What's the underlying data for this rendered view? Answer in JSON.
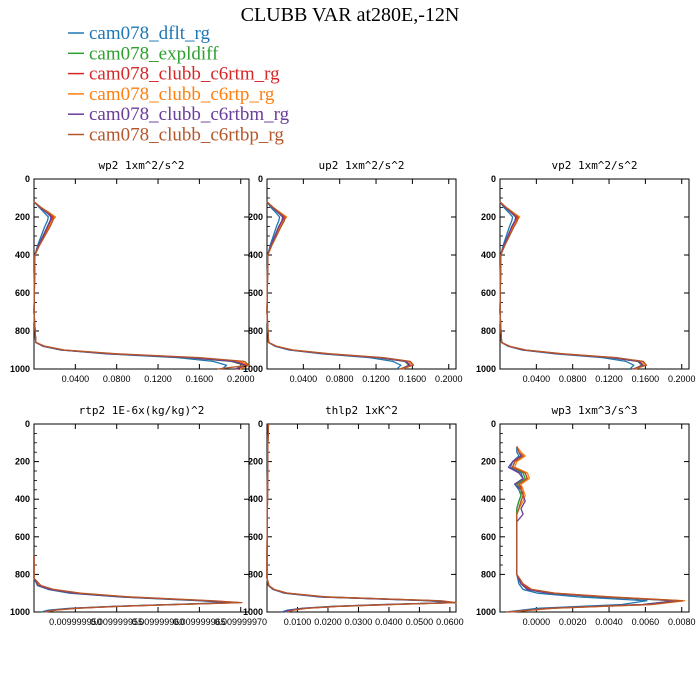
{
  "chart_data": {
    "title": "CLUBB VAR at280E,-12N",
    "legend": [
      {
        "name": "cam078_dflt_rg",
        "color": "#1f77b4"
      },
      {
        "name": "cam078_expldiff",
        "color": "#2ca02c"
      },
      {
        "name": "cam078_clubb_c6rtm_rg",
        "color": "#d62728"
      },
      {
        "name": "cam078_clubb_c6rtp_rg",
        "color": "#ff7f0e"
      },
      {
        "name": "cam078_clubb_c6rtbm_rg",
        "color": "#6a3d9a"
      },
      {
        "name": "cam078_clubb_c6rtbp_rg",
        "color": "#b5562a"
      }
    ],
    "panels": [
      {
        "type": "line",
        "title": "wp2  1xm^2/s^2",
        "xlim": [
          0,
          0.24
        ],
        "xticks": [
          "0.0400",
          "0.0800",
          "0.1200",
          "0.1600",
          "0.2000"
        ],
        "ylim": [
          0,
          1000
        ],
        "yticks": [
          "0",
          "200",
          "400",
          "600",
          "800",
          "1000"
        ],
        "y": [
          120,
          150,
          180,
          200,
          220,
          250,
          300,
          350,
          400,
          700,
          860,
          880,
          900,
          920,
          940,
          960,
          980,
          1000
        ],
        "series": [
          [
            0.0,
            0.006,
            0.012,
            0.016,
            0.015,
            0.012,
            0.008,
            0.004,
            0.001,
            0.0,
            0.002,
            0.01,
            0.03,
            0.08,
            0.16,
            0.2,
            0.215,
            0.21
          ],
          [
            0.0,
            0.007,
            0.015,
            0.02,
            0.018,
            0.015,
            0.01,
            0.005,
            0.001,
            0.0,
            0.002,
            0.01,
            0.03,
            0.085,
            0.17,
            0.22,
            0.235,
            0.225
          ],
          [
            0.0,
            0.007,
            0.016,
            0.021,
            0.019,
            0.016,
            0.011,
            0.005,
            0.001,
            0.0,
            0.002,
            0.011,
            0.032,
            0.087,
            0.175,
            0.225,
            0.238,
            0.225
          ],
          [
            0.0,
            0.008,
            0.018,
            0.024,
            0.02,
            0.017,
            0.012,
            0.006,
            0.001,
            0.0,
            0.002,
            0.011,
            0.033,
            0.09,
            0.18,
            0.23,
            0.24,
            0.23
          ],
          [
            0.0,
            0.007,
            0.015,
            0.019,
            0.018,
            0.015,
            0.01,
            0.005,
            0.001,
            0.0,
            0.002,
            0.01,
            0.031,
            0.086,
            0.172,
            0.222,
            0.236,
            0.226
          ],
          [
            0.0,
            0.008,
            0.017,
            0.022,
            0.021,
            0.018,
            0.012,
            0.006,
            0.001,
            0.0,
            0.002,
            0.012,
            0.034,
            0.092,
            0.185,
            0.235,
            0.24,
            0.205
          ]
        ]
      },
      {
        "type": "line",
        "title": "up2  1xm^2/s^2",
        "xlim": [
          0,
          0.24
        ],
        "xticks": [
          "0.0400",
          "0.0800",
          "0.1200",
          "0.1600",
          "0.2000"
        ],
        "ylim": [
          0,
          1000
        ],
        "yticks": [
          "0",
          "200",
          "400",
          "600",
          "800",
          "1000"
        ],
        "y": [
          120,
          150,
          180,
          200,
          220,
          250,
          300,
          350,
          400,
          700,
          860,
          880,
          900,
          920,
          940,
          960,
          980,
          1000
        ],
        "series": [
          [
            0.0,
            0.005,
            0.012,
            0.016,
            0.015,
            0.012,
            0.008,
            0.004,
            0.001,
            0.0,
            0.002,
            0.01,
            0.028,
            0.07,
            0.13,
            0.16,
            0.17,
            0.165
          ],
          [
            0.0,
            0.007,
            0.015,
            0.02,
            0.019,
            0.015,
            0.01,
            0.005,
            0.001,
            0.0,
            0.002,
            0.011,
            0.03,
            0.075,
            0.14,
            0.175,
            0.18,
            0.17
          ],
          [
            0.0,
            0.007,
            0.016,
            0.022,
            0.02,
            0.016,
            0.011,
            0.005,
            0.001,
            0.0,
            0.002,
            0.011,
            0.031,
            0.076,
            0.142,
            0.177,
            0.182,
            0.17
          ],
          [
            0.0,
            0.008,
            0.018,
            0.025,
            0.021,
            0.017,
            0.012,
            0.006,
            0.001,
            0.0,
            0.002,
            0.012,
            0.032,
            0.078,
            0.145,
            0.18,
            0.185,
            0.172
          ],
          [
            0.0,
            0.007,
            0.015,
            0.02,
            0.019,
            0.015,
            0.01,
            0.005,
            0.001,
            0.0,
            0.002,
            0.011,
            0.03,
            0.075,
            0.141,
            0.176,
            0.181,
            0.17
          ],
          [
            0.0,
            0.008,
            0.017,
            0.023,
            0.022,
            0.018,
            0.012,
            0.006,
            0.001,
            0.0,
            0.002,
            0.012,
            0.033,
            0.08,
            0.148,
            0.182,
            0.186,
            0.168
          ]
        ]
      },
      {
        "type": "line",
        "title": "vp2  1xm^2/s^2",
        "xlim": [
          0,
          0.24
        ],
        "xticks": [
          "0.0400",
          "0.0800",
          "0.1200",
          "0.1600",
          "0.2000"
        ],
        "ylim": [
          0,
          1000
        ],
        "yticks": [
          "0",
          "200",
          "400",
          "600",
          "800",
          "1000"
        ],
        "y": [
          120,
          150,
          180,
          200,
          220,
          250,
          300,
          350,
          400,
          700,
          860,
          880,
          900,
          920,
          940,
          960,
          980,
          1000
        ],
        "series": [
          [
            0.0,
            0.005,
            0.012,
            0.016,
            0.015,
            0.012,
            0.008,
            0.004,
            0.001,
            0.0,
            0.002,
            0.01,
            0.028,
            0.07,
            0.13,
            0.16,
            0.17,
            0.165
          ],
          [
            0.0,
            0.007,
            0.015,
            0.02,
            0.019,
            0.015,
            0.01,
            0.005,
            0.001,
            0.0,
            0.002,
            0.011,
            0.03,
            0.075,
            0.14,
            0.175,
            0.18,
            0.17
          ],
          [
            0.0,
            0.007,
            0.016,
            0.022,
            0.02,
            0.016,
            0.011,
            0.005,
            0.001,
            0.0,
            0.002,
            0.011,
            0.031,
            0.076,
            0.142,
            0.177,
            0.182,
            0.17
          ],
          [
            0.0,
            0.008,
            0.018,
            0.025,
            0.021,
            0.017,
            0.012,
            0.006,
            0.001,
            0.0,
            0.002,
            0.012,
            0.032,
            0.078,
            0.145,
            0.18,
            0.185,
            0.172
          ],
          [
            0.0,
            0.007,
            0.015,
            0.02,
            0.019,
            0.015,
            0.01,
            0.005,
            0.001,
            0.0,
            0.002,
            0.011,
            0.03,
            0.075,
            0.141,
            0.176,
            0.181,
            0.17
          ],
          [
            0.0,
            0.008,
            0.017,
            0.023,
            0.022,
            0.018,
            0.012,
            0.006,
            0.001,
            0.0,
            0.002,
            0.012,
            0.033,
            0.08,
            0.148,
            0.182,
            0.186,
            0.168
          ]
        ]
      },
      {
        "type": "line",
        "title": "rtp2  1E-6x(kg/kg)^2",
        "xlim": [
          0.009999945,
          0.009999975
        ],
        "xticks": [
          "0.009999950",
          "0.009999955",
          "0.009999960",
          "0.009999965",
          "0.009999970"
        ],
        "ylim": [
          0,
          1000
        ],
        "yticks": [
          "0",
          "200",
          "400",
          "600",
          "800",
          "1000"
        ],
        "y": [
          700,
          820,
          860,
          880,
          900,
          920,
          940,
          950,
          960,
          970,
          980,
          990,
          1000
        ],
        "series": [
          [
            0.009999945,
            0.009999945,
            0.0099999455,
            0.009999947,
            0.00999995,
            0.009999957,
            0.009999968,
            0.009999972,
            0.009999964,
            0.009999956,
            0.00999995,
            0.009999947,
            0.009999946
          ],
          [
            0.009999945,
            0.009999945,
            0.0099999456,
            0.0099999472,
            0.0099999505,
            0.0099999575,
            0.0099999688,
            0.009999973,
            0.0099999645,
            0.0099999562,
            0.0099999505,
            0.0099999475,
            0.0099999462
          ],
          [
            0.009999945,
            0.009999945,
            0.0099999457,
            0.0099999474,
            0.0099999508,
            0.0099999578,
            0.0099999692,
            0.0099999735,
            0.0099999648,
            0.0099999565,
            0.0099999508,
            0.0099999477,
            0.0099999464
          ],
          [
            0.009999945,
            0.009999945,
            0.0099999458,
            0.0099999475,
            0.009999951,
            0.009999958,
            0.0099999695,
            0.0099999738,
            0.009999965,
            0.0099999567,
            0.009999951,
            0.0099999479,
            0.0099999465
          ],
          [
            0.009999945,
            0.009999945,
            0.0099999456,
            0.0099999472,
            0.0099999506,
            0.0099999576,
            0.009999969,
            0.0099999732,
            0.0099999646,
            0.0099999563,
            0.0099999506,
            0.0099999476,
            0.0099999463
          ],
          [
            0.009999945,
            0.009999945,
            0.009999946,
            0.0099999478,
            0.0099999515,
            0.0099999585,
            0.00999997,
            0.009999974,
            0.0099999652,
            0.009999957,
            0.0099999512,
            0.009999948,
            0.0099999466
          ]
        ]
      },
      {
        "type": "line",
        "title": "thlp2  1xK^2",
        "xlim": [
          0,
          0.065
        ],
        "xticks": [
          "0.0100",
          "0.0200",
          "0.0300",
          "0.0400",
          "0.0500",
          "0.0600"
        ],
        "ylim": [
          0,
          1000
        ],
        "yticks": [
          "0",
          "200",
          "400",
          "600",
          "800",
          "1000"
        ],
        "y": [
          0,
          100,
          700,
          820,
          860,
          880,
          900,
          920,
          940,
          950,
          960,
          970,
          980,
          990,
          1000
        ],
        "series": [
          [
            0.0005,
            0.0003,
            0.0,
            0.0,
            0.0005,
            0.002,
            0.006,
            0.018,
            0.055,
            0.063,
            0.04,
            0.022,
            0.012,
            0.007,
            0.005
          ],
          [
            0.0005,
            0.0003,
            0.0,
            0.0,
            0.0006,
            0.0022,
            0.0065,
            0.019,
            0.057,
            0.064,
            0.041,
            0.023,
            0.013,
            0.008,
            0.006
          ],
          [
            0.0005,
            0.0003,
            0.0,
            0.0,
            0.0006,
            0.0023,
            0.0067,
            0.0195,
            0.058,
            0.065,
            0.042,
            0.024,
            0.013,
            0.008,
            0.006
          ],
          [
            0.0005,
            0.0003,
            0.0,
            0.0,
            0.0007,
            0.0024,
            0.007,
            0.02,
            0.059,
            0.065,
            0.043,
            0.024,
            0.014,
            0.009,
            0.006
          ],
          [
            0.0005,
            0.0003,
            0.0,
            0.0,
            0.0006,
            0.0022,
            0.0066,
            0.0192,
            0.0575,
            0.0645,
            0.0415,
            0.0235,
            0.013,
            0.008,
            0.006
          ],
          [
            0.0005,
            0.0003,
            0.0,
            0.0,
            0.0007,
            0.0025,
            0.0072,
            0.021,
            0.06,
            0.065,
            0.044,
            0.025,
            0.014,
            0.009,
            0.007
          ]
        ]
      },
      {
        "type": "line",
        "title": "wp3  1xm^3/s^3",
        "xlim": [
          -0.0008,
          0.0082
        ],
        "xticks": [
          "0.0000",
          "0.0020",
          "0.0040",
          "0.0060",
          "0.0080"
        ],
        "ylim": [
          0,
          1000
        ],
        "yticks": [
          "0",
          "200",
          "400",
          "600",
          "800",
          "1000"
        ],
        "y": [
          120,
          150,
          170,
          200,
          230,
          260,
          290,
          320,
          350,
          380,
          410,
          450,
          480,
          520,
          800,
          850,
          880,
          900,
          920,
          940,
          960,
          980,
          1000
        ],
        "series": [
          [
            0.0,
            0.0,
            0.0001,
            -0.0002,
            -0.0003,
            0.0002,
            0.0003,
            -0.0001,
            0.0001,
            0.0002,
            0.0001,
            0.0,
            0.0,
            0.0,
            0.0,
            0.0001,
            0.0003,
            0.001,
            0.003,
            0.0062,
            0.005,
            0.001,
            -0.0005
          ],
          [
            0.0,
            0.0001,
            0.0002,
            -0.0001,
            -0.0002,
            0.0003,
            0.0004,
            0.0,
            0.0002,
            0.0002,
            0.0001,
            0.0,
            0.0,
            0.0,
            0.0,
            0.0002,
            0.0005,
            0.0015,
            0.004,
            0.0075,
            0.006,
            0.0015,
            -0.0004
          ],
          [
            0.0,
            0.0001,
            0.0003,
            -0.0001,
            -0.0002,
            0.0004,
            0.0005,
            0.0001,
            0.0003,
            0.0003,
            0.0002,
            0.0001,
            0.0,
            0.0,
            0.0,
            0.0002,
            0.0006,
            0.0017,
            0.0042,
            0.0078,
            0.0062,
            0.0016,
            -0.0004
          ],
          [
            0.0,
            0.0002,
            0.0004,
            0.0,
            -0.0001,
            0.0005,
            0.0006,
            0.0002,
            0.0003,
            0.0004,
            0.0003,
            0.0001,
            0.0,
            0.0,
            0.0,
            0.0003,
            0.0007,
            0.0018,
            0.0045,
            0.008,
            0.0065,
            0.0018,
            -0.0003
          ],
          [
            0.0,
            0.0001,
            0.0002,
            -0.0002,
            -0.0004,
            0.0001,
            0.0003,
            -0.0001,
            0.0002,
            0.0003,
            0.0004,
            0.0002,
            0.0003,
            0.0,
            0.0,
            0.0002,
            0.0005,
            0.0015,
            0.0041,
            0.0076,
            0.006,
            0.0015,
            -0.0004
          ],
          [
            0.0,
            0.0001,
            0.0003,
            -0.0001,
            -0.0002,
            0.0004,
            0.0005,
            0.0001,
            0.0002,
            0.0003,
            0.0002,
            0.0001,
            0.0,
            0.0,
            0.0,
            0.0003,
            0.0007,
            0.0018,
            0.0044,
            0.0079,
            0.0064,
            0.0017,
            -0.0005
          ]
        ]
      }
    ]
  }
}
